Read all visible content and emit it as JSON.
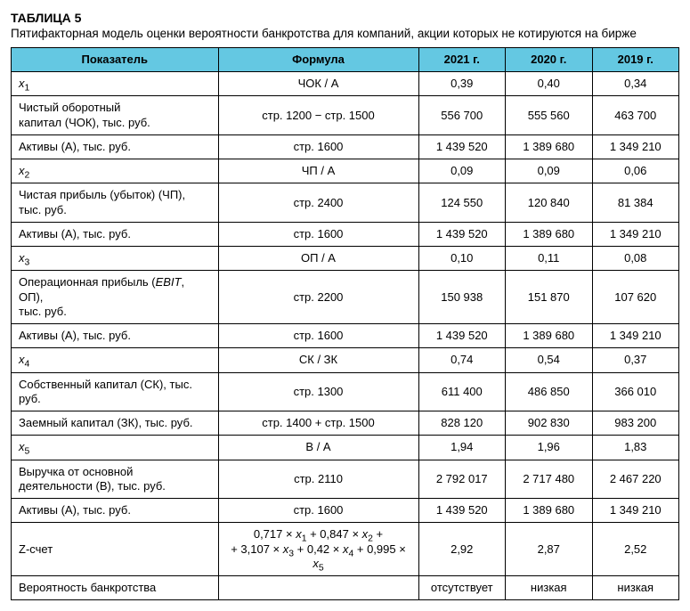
{
  "title": "ТАБЛИЦА 5",
  "subtitle": "Пятифакторная модель оценки вероятности банкротства для компаний, акции которых не котируются на бирже",
  "headers": {
    "label": "Показатель",
    "formula": "Формула",
    "y2021": "2021 г.",
    "y2020": "2020 г.",
    "y2019": "2019 г."
  },
  "header_bg": "#64c8e2",
  "border_color": "#000000",
  "rows": [
    {
      "label_html": "<span class='xi'>x</span><span class='sub'>1</span>",
      "formula": "ЧОК / А",
      "y2021": "0,39",
      "y2020": "0,40",
      "y2019": "0,34"
    },
    {
      "label_html": "Чистый оборотный<br>капитал (ЧОК), тыс. руб.",
      "formula": "стр. 1200 − стр. 1500",
      "y2021": "556 700",
      "y2020": "555 560",
      "y2019": "463 700"
    },
    {
      "label_html": "Активы (А), тыс. руб.",
      "formula": "стр. 1600",
      "y2021": "1 439 520",
      "y2020": "1 389 680",
      "y2019": "1 349 210"
    },
    {
      "label_html": "<span class='xi'>x</span><span class='sub'>2</span>",
      "formula": "ЧП / А",
      "y2021": "0,09",
      "y2020": "0,09",
      "y2019": "0,06"
    },
    {
      "label_html": "Чистая прибыль (убыток) (ЧП), тыс. руб.",
      "formula": "стр. 2400",
      "y2021": "124 550",
      "y2020": "120 840",
      "y2019": "81 384"
    },
    {
      "label_html": "Активы (А), тыс. руб.",
      "formula": "стр. 1600",
      "y2021": "1 439 520",
      "y2020": "1 389 680",
      "y2019": "1 349 210"
    },
    {
      "label_html": "<span class='xi'>x</span><span class='sub'>3</span>",
      "formula": "ОП / А",
      "y2021": "0,10",
      "y2020": "0,11",
      "y2019": "0,08"
    },
    {
      "label_html": "Операционная прибыль (<span class='xi'>EBIT</span>, ОП),<br>тыс. руб.",
      "formula": "стр. 2200",
      "y2021": "150 938",
      "y2020": "151 870",
      "y2019": "107 620"
    },
    {
      "label_html": "Активы (А), тыс. руб.",
      "formula": "стр. 1600",
      "y2021": "1 439 520",
      "y2020": "1 389 680",
      "y2019": "1 349 210"
    },
    {
      "label_html": "<span class='xi'>x</span><span class='sub'>4</span>",
      "formula": "СК / ЗК",
      "y2021": "0,74",
      "y2020": "0,54",
      "y2019": "0,37"
    },
    {
      "label_html": "Собственный капитал (СК), тыс. руб.",
      "formula": "стр. 1300",
      "y2021": "611 400",
      "y2020": "486 850",
      "y2019": "366 010"
    },
    {
      "label_html": "Заемный капитал (ЗК), тыс. руб.",
      "formula": "стр. 1400 + стр. 1500",
      "y2021": "828 120",
      "y2020": "902 830",
      "y2019": "983 200"
    },
    {
      "label_html": "<span class='xi'>x</span><span class='sub'>5</span>",
      "formula": "В / А",
      "y2021": "1,94",
      "y2020": "1,96",
      "y2019": "1,83"
    },
    {
      "label_html": "Выручка от основной<br>деятельности (В), тыс. руб.",
      "formula": "стр. 2110",
      "y2021": "2 792 017",
      "y2020": "2 717 480",
      "y2019": "2 467 220"
    },
    {
      "label_html": "Активы (А), тыс. руб.",
      "formula": "стр. 1600",
      "y2021": "1 439 520",
      "y2020": "1 389 680",
      "y2019": "1 349 210"
    },
    {
      "label_html": "Z-счет",
      "formula_html": "0,717 × <span class='xi'>x</span><span class='sub'>1</span> + 0,847 × <span class='xi'>x</span><span class='sub'>2</span> +<br>+ 3,107 × <span class='xi'>x</span><span class='sub'>3</span> + 0,42 × <span class='xi'>x</span><span class='sub'>4</span> + 0,995 × <span class='xi'>x</span><span class='sub'>5</span>",
      "y2021": "2,92",
      "y2020": "2,87",
      "y2019": "2,52"
    },
    {
      "label_html": "Вероятность банкротства",
      "formula": "",
      "y2021": "отсутствует",
      "y2020": "низкая",
      "y2019": "низкая"
    }
  ]
}
